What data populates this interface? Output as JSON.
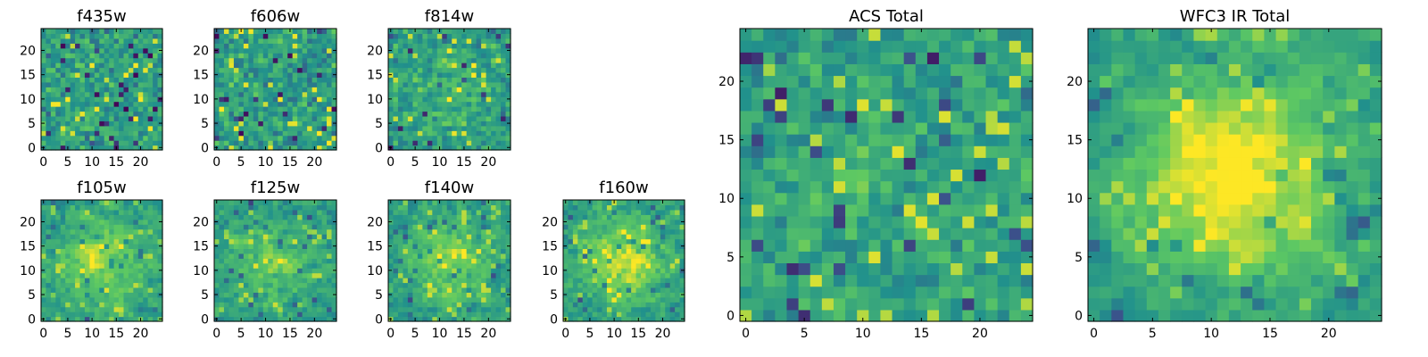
{
  "figure": {
    "colormap": [
      "#440154",
      "#3b528b",
      "#21918c",
      "#5ec962",
      "#fde725"
    ]
  },
  "chart_data": [
    {
      "type": "heatmap",
      "title": "f435w",
      "grid": [
        25,
        25
      ],
      "xlim": [
        -0.5,
        24.5
      ],
      "ylim": [
        -0.5,
        24.5
      ],
      "xticks": [
        "0",
        "5",
        "10",
        "15",
        "20"
      ],
      "yticks": [
        "0",
        "5",
        "10",
        "15",
        "20"
      ],
      "seed": 11,
      "smooth": 0.0,
      "center_boost": 0.0
    },
    {
      "type": "heatmap",
      "title": "f606w",
      "grid": [
        25,
        25
      ],
      "xlim": [
        -0.5,
        24.5
      ],
      "ylim": [
        -0.5,
        24.5
      ],
      "xticks": [
        "0",
        "5",
        "10",
        "15",
        "20"
      ],
      "yticks": [
        "0",
        "5",
        "10",
        "15",
        "20"
      ],
      "seed": 23,
      "smooth": 0.0,
      "center_boost": 0.0
    },
    {
      "type": "heatmap",
      "title": "f814w",
      "grid": [
        25,
        25
      ],
      "xlim": [
        -0.5,
        24.5
      ],
      "ylim": [
        -0.5,
        24.5
      ],
      "xticks": [
        "0",
        "5",
        "10",
        "15",
        "20"
      ],
      "yticks": [
        "0",
        "5",
        "10",
        "15",
        "20"
      ],
      "seed": 37,
      "smooth": 0.1,
      "center_boost": 0.1
    },
    {
      "type": "heatmap",
      "title": "f105w",
      "grid": [
        25,
        25
      ],
      "xlim": [
        -0.5,
        24.5
      ],
      "ylim": [
        -0.5,
        24.5
      ],
      "xticks": [
        "0",
        "5",
        "10",
        "15",
        "20"
      ],
      "yticks": [
        "0",
        "5",
        "10",
        "15",
        "20"
      ],
      "seed": 41,
      "smooth": 0.45,
      "center_boost": 0.3
    },
    {
      "type": "heatmap",
      "title": "f125w",
      "grid": [
        25,
        25
      ],
      "xlim": [
        -0.5,
        24.5
      ],
      "ylim": [
        -0.5,
        24.5
      ],
      "xticks": [
        "0",
        "5",
        "10",
        "15",
        "20"
      ],
      "yticks": [
        "0",
        "5",
        "10",
        "15",
        "20"
      ],
      "seed": 53,
      "smooth": 0.4,
      "center_boost": 0.2
    },
    {
      "type": "heatmap",
      "title": "f140w",
      "grid": [
        25,
        25
      ],
      "xlim": [
        -0.5,
        24.5
      ],
      "ylim": [
        -0.5,
        24.5
      ],
      "xticks": [
        "0",
        "5",
        "10",
        "15",
        "20"
      ],
      "yticks": [
        "0",
        "5",
        "10",
        "15",
        "20"
      ],
      "seed": 67,
      "smooth": 0.4,
      "center_boost": 0.25
    },
    {
      "type": "heatmap",
      "title": "f160w",
      "grid": [
        25,
        25
      ],
      "xlim": [
        -0.5,
        24.5
      ],
      "ylim": [
        -0.5,
        24.5
      ],
      "xticks": [
        "0",
        "5",
        "10",
        "15",
        "20"
      ],
      "yticks": [
        "0",
        "5",
        "10",
        "15",
        "20"
      ],
      "seed": 79,
      "smooth": 0.35,
      "center_boost": 0.35
    },
    {
      "type": "heatmap",
      "title": "ACS Total",
      "grid": [
        25,
        25
      ],
      "xlim": [
        -0.5,
        24.5
      ],
      "ylim": [
        -0.5,
        24.5
      ],
      "xticks": [
        "0",
        "5",
        "10",
        "15",
        "20"
      ],
      "yticks": [
        "0",
        "5",
        "10",
        "15",
        "20"
      ],
      "seed": 97,
      "smooth": 0.15,
      "center_boost": 0.05
    },
    {
      "type": "heatmap",
      "title": "WFC3 IR Total",
      "grid": [
        25,
        25
      ],
      "xlim": [
        -0.5,
        24.5
      ],
      "ylim": [
        -0.5,
        24.5
      ],
      "xticks": [
        "0",
        "5",
        "10",
        "15",
        "20"
      ],
      "yticks": [
        "0",
        "5",
        "10",
        "15",
        "20"
      ],
      "seed": 101,
      "smooth": 0.55,
      "center_boost": 0.45
    }
  ]
}
